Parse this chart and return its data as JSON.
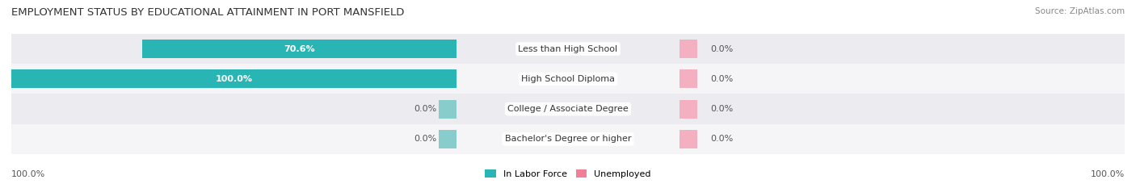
{
  "title": "EMPLOYMENT STATUS BY EDUCATIONAL ATTAINMENT IN PORT MANSFIELD",
  "source": "Source: ZipAtlas.com",
  "categories": [
    "Less than High School",
    "High School Diploma",
    "College / Associate Degree",
    "Bachelor's Degree or higher"
  ],
  "in_labor_force": [
    70.6,
    100.0,
    0.0,
    0.0
  ],
  "unemployed": [
    0.0,
    0.0,
    0.0,
    0.0
  ],
  "color_labor": "#2ab5b5",
  "color_unemployed": "#f08098",
  "color_labor_zero": "#88cccc",
  "color_unemployed_zero": "#f4afc0",
  "row_colors": [
    "#ebebf0",
    "#f5f5f8",
    "#ebebf0",
    "#f5f5f8"
  ],
  "xlim_left": 100,
  "xlim_right": 100,
  "bar_height": 0.62,
  "bottom_left_label": "100.0%",
  "bottom_right_label": "100.0%",
  "title_fontsize": 9.5,
  "source_fontsize": 7.5,
  "label_fontsize": 8,
  "cat_fontsize": 8
}
